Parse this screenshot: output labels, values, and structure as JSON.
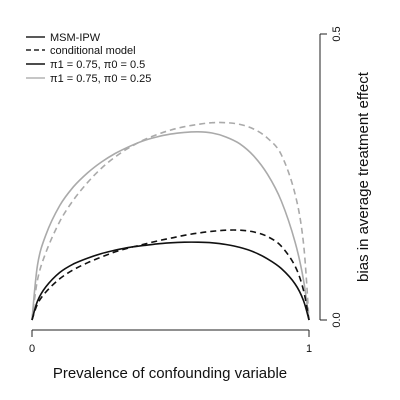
{
  "chart_data": {
    "type": "line",
    "xlabel": "Prevalence of confounding variable",
    "ylabel": "bias in average treatment effect",
    "xlim": [
      0,
      1
    ],
    "ylim": [
      0,
      0.5
    ],
    "x_ticks": [
      0,
      1
    ],
    "x_tick_labels": [
      "0",
      "1"
    ],
    "y_ticks": [
      0,
      0.5
    ],
    "y_tick_labels": [
      "0.0",
      "0.5"
    ],
    "y_axis_side": "right",
    "grid": false,
    "legend_position": "top-left",
    "legend": [
      {
        "label": "MSM-IPW",
        "kind": "linestyle",
        "style": "solid",
        "color": "#222222"
      },
      {
        "label": "conditional model",
        "kind": "linestyle",
        "style": "dashed",
        "color": "#222222"
      },
      {
        "label": "π1 = 0.75, π0 = 0.5",
        "kind": "color",
        "style": "solid",
        "color": "#111111"
      },
      {
        "label": "π1 = 0.75, π0 = 0.25",
        "kind": "color",
        "style": "solid",
        "color": "#b4b4b4"
      }
    ],
    "series": [
      {
        "method": "MSM-IPW",
        "scenario": "π1 = 0.75, π0 = 0.25",
        "color": "#aaaaaa",
        "style": "solid",
        "x": [
          0,
          0.02,
          0.05,
          0.1,
          0.15,
          0.2,
          0.25,
          0.3,
          0.35,
          0.4,
          0.45,
          0.5,
          0.55,
          0.6,
          0.65,
          0.7,
          0.75,
          0.8,
          0.85,
          0.9,
          0.95,
          0.98,
          1
        ],
        "y": [
          0,
          0.096,
          0.149,
          0.2,
          0.233,
          0.257,
          0.276,
          0.291,
          0.303,
          0.313,
          0.32,
          0.325,
          0.328,
          0.329,
          0.327,
          0.32,
          0.308,
          0.287,
          0.255,
          0.208,
          0.136,
          0.07,
          0
        ]
      },
      {
        "method": "conditional model",
        "scenario": "π1 = 0.75, π0 = 0.25",
        "color": "#aaaaaa",
        "style": "dashed",
        "x": [
          0,
          0.02,
          0.05,
          0.1,
          0.15,
          0.2,
          0.25,
          0.3,
          0.35,
          0.4,
          0.45,
          0.5,
          0.55,
          0.6,
          0.65,
          0.7,
          0.75,
          0.8,
          0.85,
          0.9,
          0.95,
          0.98,
          1
        ],
        "y": [
          0,
          0.07,
          0.118,
          0.172,
          0.21,
          0.24,
          0.265,
          0.285,
          0.301,
          0.314,
          0.324,
          0.332,
          0.338,
          0.342,
          0.345,
          0.345,
          0.342,
          0.334,
          0.318,
          0.289,
          0.22,
          0.134,
          0
        ]
      },
      {
        "method": "MSM-IPW",
        "scenario": "π1 = 0.75, π0 = 0.5",
        "color": "#111111",
        "style": "solid",
        "x": [
          0,
          0.02,
          0.05,
          0.1,
          0.15,
          0.2,
          0.25,
          0.3,
          0.35,
          0.4,
          0.45,
          0.5,
          0.55,
          0.6,
          0.65,
          0.7,
          0.75,
          0.8,
          0.85,
          0.9,
          0.95,
          0.98,
          1
        ],
        "y": [
          0,
          0.033,
          0.058,
          0.083,
          0.098,
          0.108,
          0.116,
          0.122,
          0.127,
          0.13,
          0.133,
          0.135,
          0.136,
          0.136,
          0.135,
          0.132,
          0.127,
          0.119,
          0.107,
          0.09,
          0.063,
          0.034,
          0
        ]
      },
      {
        "method": "conditional model",
        "scenario": "π1 = 0.75, π0 = 0.5",
        "color": "#111111",
        "style": "dashed",
        "x": [
          0,
          0.02,
          0.05,
          0.1,
          0.15,
          0.2,
          0.25,
          0.3,
          0.35,
          0.4,
          0.45,
          0.5,
          0.55,
          0.6,
          0.65,
          0.7,
          0.75,
          0.8,
          0.85,
          0.9,
          0.95,
          0.98,
          1
        ],
        "y": [
          0,
          0.028,
          0.049,
          0.072,
          0.088,
          0.1,
          0.11,
          0.119,
          0.126,
          0.132,
          0.138,
          0.143,
          0.148,
          0.152,
          0.155,
          0.157,
          0.157,
          0.154,
          0.146,
          0.129,
          0.094,
          0.052,
          0
        ]
      }
    ]
  }
}
